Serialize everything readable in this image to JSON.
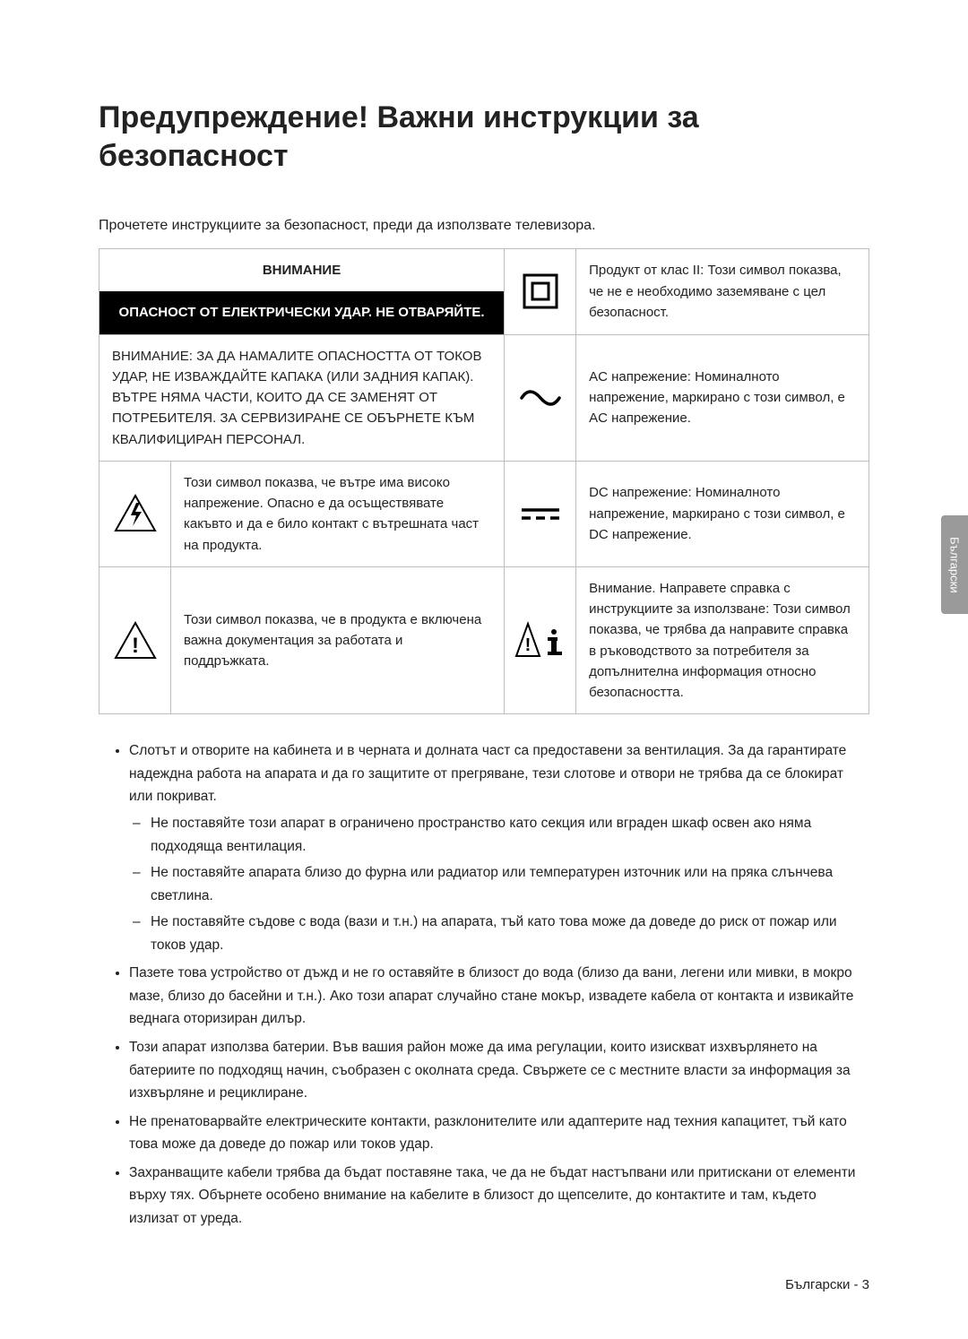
{
  "title": "Предупреждение! Важни инструкции за безопасност",
  "intro": "Прочетете инструкциите за безопасност, преди да използвате телевизора.",
  "table": {
    "caution_header_top": "ВНИМАНИЕ",
    "caution_header_bottom": "ОПАСНОСТ ОТ ЕЛЕКТРИЧЕСКИ УДАР. НЕ ОТВАРЯЙТЕ.",
    "caution_text": "ВНИМАНИЕ: ЗА ДА НАМАЛИТЕ ОПАСНОСТТА ОТ ТОКОВ УДАР, НЕ ИЗВАЖДАЙТЕ КАПАКА (ИЛИ ЗАДНИЯ КАПАК). ВЪТРЕ НЯМА ЧАСТИ, КОИТО ДА СЕ ЗАМЕНЯТ ОТ ПОТРЕБИТЕЛЯ. ЗА СЕРВИЗИРАНЕ СЕ ОБЪРНЕТЕ КЪМ КВАЛИФИЦИРАН ПЕРСОНАЛ.",
    "high_voltage": "Този символ показва, че вътре има високо напрежение. Опасно е да осъществявате какъвто и да е било контакт с вътрешната част на продукта.",
    "documentation": "Този символ показва, че в продукта е включена важна документация за работата и поддръжката.",
    "class2": "Продукт от клас II: Този символ показва, че не е необходимо заземяване с цел безопасност.",
    "ac": "AC напрежение: Номиналното напрежение, маркирано с този символ, е AC напрежение.",
    "dc": "DC напрежение: Номиналното напрежение, маркирано с този символ, е DC напрежение.",
    "refer": "Внимание. Направете справка с инструкциите за използване: Този символ показва, че трябва да направите справка в ръководството за потребителя за допълнителна информация относно безопасността."
  },
  "bullets": [
    {
      "text": "Слотът и отворите на кабинета и в черната и долната част са предоставени за вентилация. За да гарантирате надеждна работа на апарата и да го защитите от прегряване, тези слотове и отвори не трябва да се блокират или покриват.",
      "subs": [
        "Не поставяйте този апарат в ограничено пространство като секция или вграден шкаф освен ако няма подходяща вентилация.",
        "Не поставяйте апарата близо до фурна или радиатор или температурен източник или на пряка слънчева светлина.",
        "Не поставяйте съдове с вода (вази и т.н.) на апарата, тъй като това може да доведе до риск от пожар или токов удар."
      ]
    },
    {
      "text": "Пазете това устройство от дъжд и не го оставяйте в близост до вода (близо да вани, легени или мивки, в мокро мазе, близо до басейни и т.н.). Ако този апарат случайно стане мокър, извадете кабела от контакта и извикайте веднага оторизиран дилър."
    },
    {
      "text": "Този апарат използва батерии. Във вашия район може да има регулации, които изискват изхвърлянето на батериите по подходящ начин, съобразен с околната среда. Свържете се с местните власти за информация за изхвърляне и рециклиране."
    },
    {
      "text": "Не пренатоварвайте електрическите контакти, разклонителите или адаптерите над техния капацитет, тъй като това може да доведе до пожар или токов удар."
    },
    {
      "text": "Захранващите кабели трябва да бъдат поставяне така, че да не бъдат настъпвани или притискани от елементи върху тях. Обърнете особено внимание на кабелите в близост до щепселите, до контактите и там, където излизат от уреда."
    }
  ],
  "side_tab": "Български",
  "footer": "Български - 3",
  "colors": {
    "text": "#222222",
    "border": "#bdbdbd",
    "tab_bg": "#9a9a9a",
    "black": "#000000",
    "white": "#ffffff"
  }
}
